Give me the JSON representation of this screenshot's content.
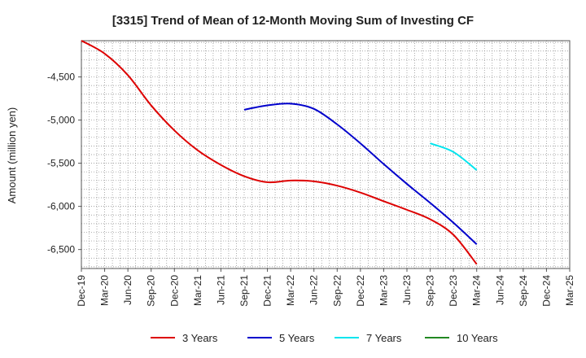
{
  "chart_data": {
    "type": "line",
    "title": "[3315]  Trend of Mean of 12-Month Moving Sum of Investing CF",
    "xlabel": "",
    "ylabel": "Amount (million yen)",
    "ylim": [
      -6720,
      -4080
    ],
    "y_ticks": [
      -4500,
      -5000,
      -5500,
      -6000,
      -6500
    ],
    "y_tick_labels": [
      "-4,500",
      "-5,000",
      "-5,500",
      "-6,000",
      "-6,500"
    ],
    "x_tick_labels": [
      "Dec-19",
      "Mar-20",
      "Jun-20",
      "Sep-20",
      "Dec-20",
      "Mar-21",
      "Jun-21",
      "Sep-21",
      "Dec-21",
      "Mar-22",
      "Jun-22",
      "Sep-22",
      "Dec-22",
      "Mar-23",
      "Jun-23",
      "Sep-23",
      "Dec-23",
      "Mar-24",
      "Jun-24",
      "Sep-24",
      "Dec-24",
      "Mar-25"
    ],
    "grid": true,
    "legend_position": "bottom",
    "series": [
      {
        "name": "3 Years",
        "color": "#dd0000",
        "x": [
          0,
          1,
          2,
          3,
          4,
          5,
          6,
          7,
          8,
          9,
          10,
          11,
          12,
          13,
          14,
          15,
          16,
          17
        ],
        "values": [
          -4080,
          -4230,
          -4480,
          -4830,
          -5120,
          -5350,
          -5520,
          -5650,
          -5720,
          -5700,
          -5710,
          -5760,
          -5840,
          -5940,
          -6040,
          -6150,
          -6330,
          -6670
        ]
      },
      {
        "name": "5 Years",
        "color": "#0000cc",
        "x": [
          7,
          8,
          9,
          10,
          11,
          12,
          13,
          14,
          15,
          16,
          17
        ],
        "values": [
          -4880,
          -4830,
          -4810,
          -4870,
          -5050,
          -5270,
          -5510,
          -5740,
          -5960,
          -6190,
          -6440
        ]
      },
      {
        "name": "7 Years",
        "color": "#00e5ee",
        "x": [
          15,
          16,
          17
        ],
        "values": [
          -5270,
          -5370,
          -5580
        ]
      },
      {
        "name": "10 Years",
        "color": "#228822",
        "x": [],
        "values": []
      }
    ]
  }
}
